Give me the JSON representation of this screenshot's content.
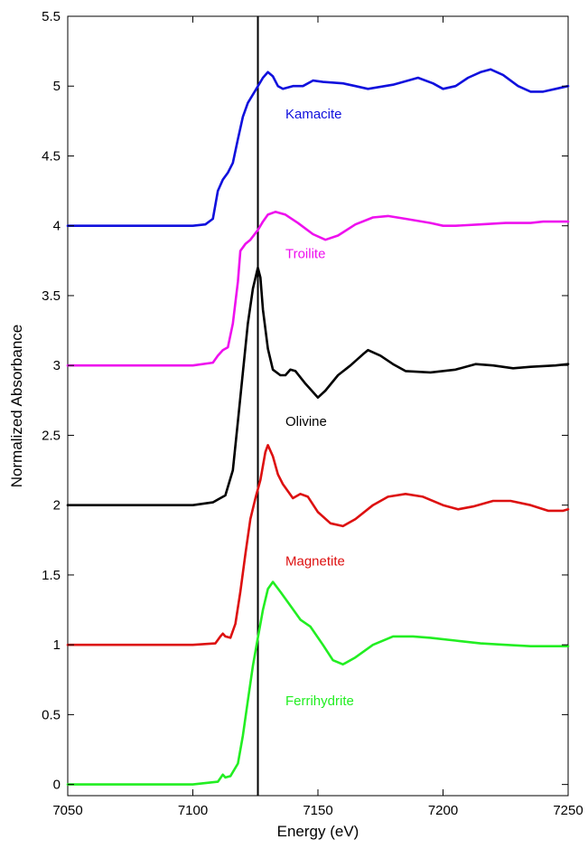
{
  "chart_data": {
    "type": "line",
    "xlabel": "Energy (eV)",
    "ylabel": "Normalized Absorbance",
    "xlim": [
      7050,
      7250
    ],
    "ylim": [
      -0.08,
      5.5
    ],
    "xticks": [
      7050,
      7100,
      7150,
      7200,
      7250
    ],
    "yticks": [
      0,
      0.5,
      1,
      1.5,
      2,
      2.5,
      3,
      3.5,
      4,
      4.5,
      5,
      5.5
    ],
    "ytick_labels": [
      "0",
      "0.5",
      "1",
      "1.5",
      "2",
      "2.5",
      "3",
      "3.5",
      "4",
      "4.5",
      "5",
      "5.5"
    ],
    "grid": false,
    "reference_line": {
      "x": 7126
    },
    "series": [
      {
        "name": "Kamacite",
        "color": "#1010dd",
        "label_at": [
          7137,
          4.8
        ],
        "points": [
          [
            7050,
            4.0
          ],
          [
            7100,
            4.0
          ],
          [
            7105,
            4.01
          ],
          [
            7108,
            4.05
          ],
          [
            7110,
            4.25
          ],
          [
            7112,
            4.33
          ],
          [
            7114,
            4.38
          ],
          [
            7116,
            4.45
          ],
          [
            7118,
            4.62
          ],
          [
            7120,
            4.78
          ],
          [
            7122,
            4.88
          ],
          [
            7125,
            4.97
          ],
          [
            7128,
            5.06
          ],
          [
            7130,
            5.1
          ],
          [
            7132,
            5.07
          ],
          [
            7134,
            5.0
          ],
          [
            7136,
            4.98
          ],
          [
            7140,
            5.0
          ],
          [
            7144,
            5.0
          ],
          [
            7148,
            5.04
          ],
          [
            7152,
            5.03
          ],
          [
            7160,
            5.02
          ],
          [
            7165,
            5.0
          ],
          [
            7170,
            4.98
          ],
          [
            7180,
            5.01
          ],
          [
            7190,
            5.06
          ],
          [
            7196,
            5.02
          ],
          [
            7200,
            4.98
          ],
          [
            7205,
            5.0
          ],
          [
            7210,
            5.06
          ],
          [
            7215,
            5.1
          ],
          [
            7219,
            5.12
          ],
          [
            7224,
            5.08
          ],
          [
            7230,
            5.0
          ],
          [
            7235,
            4.96
          ],
          [
            7240,
            4.96
          ],
          [
            7245,
            4.98
          ],
          [
            7250,
            5.0
          ]
        ]
      },
      {
        "name": "Troilite",
        "color": "#ee10ee",
        "label_at": [
          7137,
          3.8
        ],
        "points": [
          [
            7050,
            3.0
          ],
          [
            7100,
            3.0
          ],
          [
            7108,
            3.02
          ],
          [
            7110,
            3.07
          ],
          [
            7112,
            3.11
          ],
          [
            7114,
            3.13
          ],
          [
            7116,
            3.3
          ],
          [
            7118,
            3.6
          ],
          [
            7119,
            3.82
          ],
          [
            7121,
            3.87
          ],
          [
            7123,
            3.9
          ],
          [
            7126,
            3.97
          ],
          [
            7128,
            4.03
          ],
          [
            7130,
            4.08
          ],
          [
            7133,
            4.1
          ],
          [
            7137,
            4.08
          ],
          [
            7142,
            4.02
          ],
          [
            7148,
            3.94
          ],
          [
            7153,
            3.9
          ],
          [
            7158,
            3.93
          ],
          [
            7165,
            4.01
          ],
          [
            7172,
            4.06
          ],
          [
            7178,
            4.07
          ],
          [
            7185,
            4.05
          ],
          [
            7195,
            4.02
          ],
          [
            7200,
            4.0
          ],
          [
            7205,
            4.0
          ],
          [
            7215,
            4.01
          ],
          [
            7225,
            4.02
          ],
          [
            7235,
            4.02
          ],
          [
            7240,
            4.03
          ],
          [
            7250,
            4.03
          ]
        ]
      },
      {
        "name": "Olivine",
        "color": "#000000",
        "label_at": [
          7137,
          2.6
        ],
        "points": [
          [
            7050,
            2.0
          ],
          [
            7100,
            2.0
          ],
          [
            7108,
            2.02
          ],
          [
            7110,
            2.04
          ],
          [
            7113,
            2.07
          ],
          [
            7116,
            2.25
          ],
          [
            7118,
            2.6
          ],
          [
            7120,
            2.95
          ],
          [
            7122,
            3.3
          ],
          [
            7124,
            3.55
          ],
          [
            7126,
            3.7
          ],
          [
            7127,
            3.63
          ],
          [
            7128,
            3.4
          ],
          [
            7130,
            3.12
          ],
          [
            7132,
            2.97
          ],
          [
            7135,
            2.93
          ],
          [
            7137,
            2.93
          ],
          [
            7139,
            2.97
          ],
          [
            7141,
            2.96
          ],
          [
            7145,
            2.87
          ],
          [
            7150,
            2.77
          ],
          [
            7153,
            2.82
          ],
          [
            7158,
            2.93
          ],
          [
            7163,
            3.0
          ],
          [
            7168,
            3.08
          ],
          [
            7170,
            3.11
          ],
          [
            7175,
            3.07
          ],
          [
            7180,
            3.01
          ],
          [
            7185,
            2.96
          ],
          [
            7195,
            2.95
          ],
          [
            7205,
            2.97
          ],
          [
            7213,
            3.01
          ],
          [
            7220,
            3.0
          ],
          [
            7228,
            2.98
          ],
          [
            7235,
            2.99
          ],
          [
            7245,
            3.0
          ],
          [
            7250,
            3.01
          ]
        ]
      },
      {
        "name": "Magnetite",
        "color": "#dd1010",
        "label_at": [
          7137,
          1.6
        ],
        "points": [
          [
            7050,
            1.0
          ],
          [
            7100,
            1.0
          ],
          [
            7109,
            1.01
          ],
          [
            7111,
            1.06
          ],
          [
            7112,
            1.08
          ],
          [
            7113,
            1.06
          ],
          [
            7115,
            1.05
          ],
          [
            7117,
            1.15
          ],
          [
            7119,
            1.38
          ],
          [
            7121,
            1.65
          ],
          [
            7123,
            1.9
          ],
          [
            7125,
            2.05
          ],
          [
            7127,
            2.18
          ],
          [
            7129,
            2.38
          ],
          [
            7130,
            2.43
          ],
          [
            7132,
            2.35
          ],
          [
            7134,
            2.22
          ],
          [
            7136,
            2.15
          ],
          [
            7140,
            2.05
          ],
          [
            7143,
            2.08
          ],
          [
            7146,
            2.06
          ],
          [
            7150,
            1.95
          ],
          [
            7155,
            1.87
          ],
          [
            7160,
            1.85
          ],
          [
            7165,
            1.9
          ],
          [
            7172,
            2.0
          ],
          [
            7178,
            2.06
          ],
          [
            7185,
            2.08
          ],
          [
            7192,
            2.06
          ],
          [
            7200,
            2.0
          ],
          [
            7206,
            1.97
          ],
          [
            7212,
            1.99
          ],
          [
            7220,
            2.03
          ],
          [
            7227,
            2.03
          ],
          [
            7235,
            2.0
          ],
          [
            7242,
            1.96
          ],
          [
            7248,
            1.96
          ],
          [
            7250,
            1.97
          ]
        ]
      },
      {
        "name": "Ferrihydrite",
        "color": "#22ee22",
        "label_at": [
          7137,
          0.6
        ],
        "points": [
          [
            7050,
            0.0
          ],
          [
            7100,
            0.0
          ],
          [
            7110,
            0.02
          ],
          [
            7112,
            0.07
          ],
          [
            7113,
            0.05
          ],
          [
            7115,
            0.06
          ],
          [
            7118,
            0.15
          ],
          [
            7120,
            0.35
          ],
          [
            7122,
            0.6
          ],
          [
            7124,
            0.85
          ],
          [
            7126,
            1.05
          ],
          [
            7128,
            1.25
          ],
          [
            7130,
            1.4
          ],
          [
            7132,
            1.45
          ],
          [
            7135,
            1.38
          ],
          [
            7139,
            1.28
          ],
          [
            7143,
            1.18
          ],
          [
            7147,
            1.13
          ],
          [
            7152,
            1.0
          ],
          [
            7156,
            0.89
          ],
          [
            7160,
            0.86
          ],
          [
            7165,
            0.91
          ],
          [
            7172,
            1.0
          ],
          [
            7180,
            1.06
          ],
          [
            7188,
            1.06
          ],
          [
            7195,
            1.05
          ],
          [
            7205,
            1.03
          ],
          [
            7215,
            1.01
          ],
          [
            7225,
            1.0
          ],
          [
            7235,
            0.99
          ],
          [
            7250,
            0.99
          ]
        ]
      }
    ]
  }
}
